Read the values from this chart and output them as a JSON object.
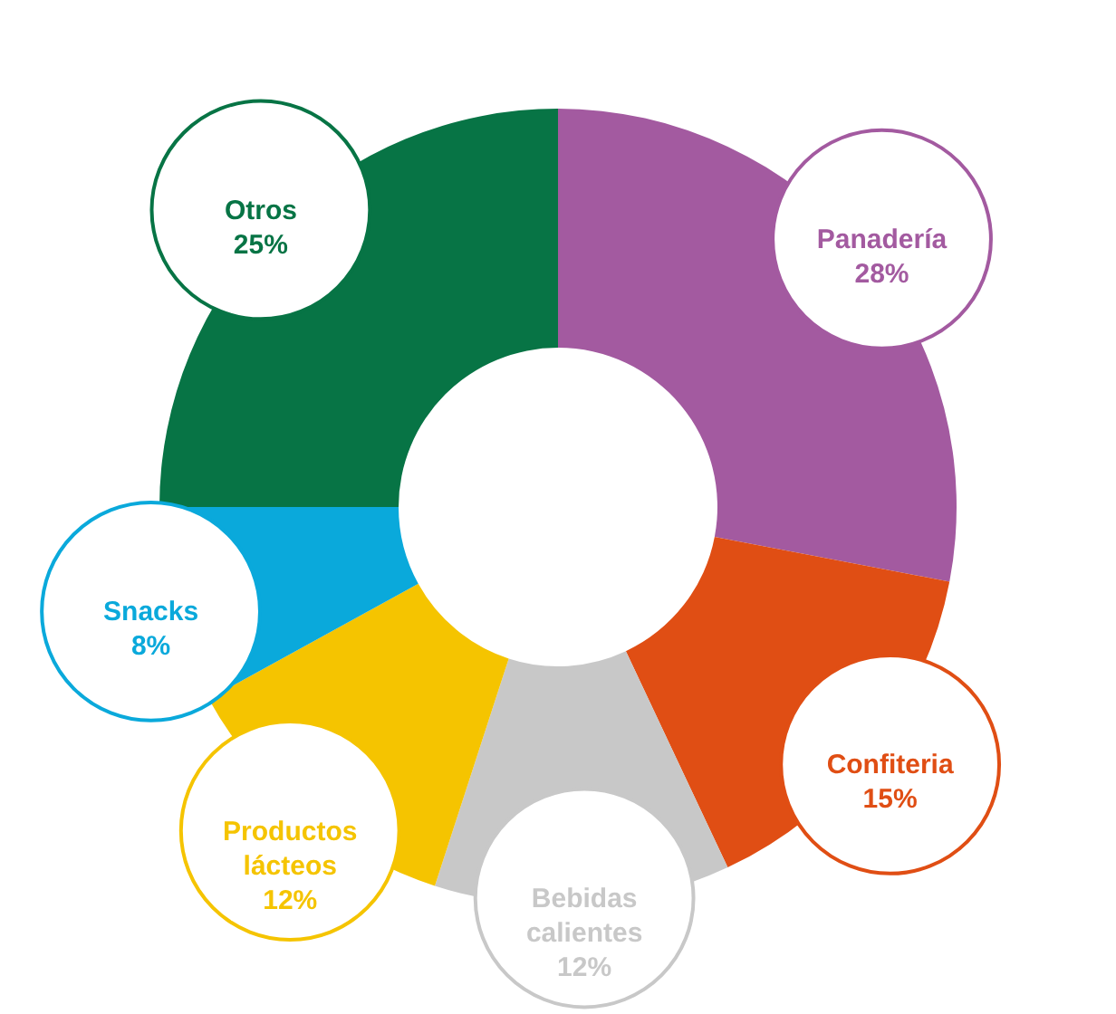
{
  "chart_data": {
    "type": "donut",
    "categories": [
      "Panadería",
      "Confiteria",
      "Bebidas calientes",
      "Productos lácteos",
      "Snacks",
      "Otros"
    ],
    "values": [
      28,
      15,
      12,
      12,
      8,
      25
    ],
    "value_labels": [
      "28%",
      "15%",
      "12%",
      "12%",
      "8%",
      "25%"
    ],
    "colors": [
      "#a35aa0",
      "#e04e14",
      "#c8c8c8",
      "#f5c400",
      "#0aa9db",
      "#077445"
    ]
  }
}
